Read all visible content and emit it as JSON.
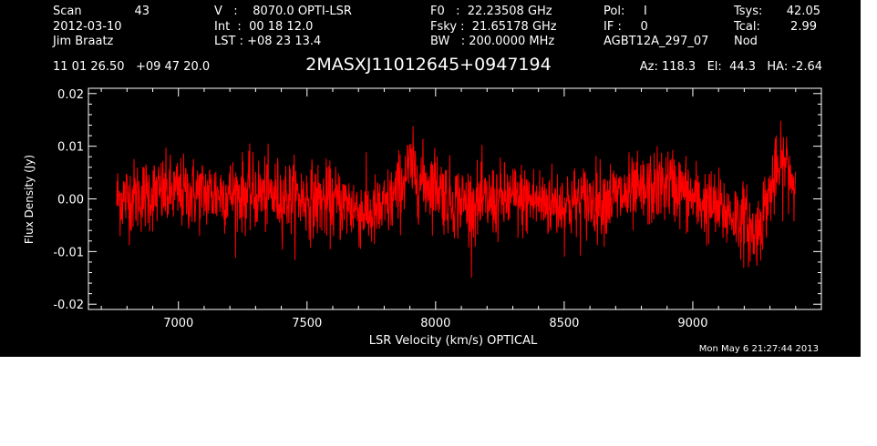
{
  "header": {
    "col1": {
      "line1_label": "Scan",
      "line1_value": "43",
      "line2": "2012-03-10",
      "line3": "Jim Braatz"
    },
    "col2": {
      "line1": "V   :    8070.0 OPTI-LSR",
      "line2": "Int  :  00 18 12.0",
      "line3": "LST : +08 23 13.4"
    },
    "col3": {
      "line1": "F0   :  22.23508 GHz",
      "line2": "Fsky :  21.65178 GHz",
      "line3": "BW   : 200.0000 MHz"
    },
    "col4": {
      "line1": "Pol:     I",
      "line2": "IF :     0",
      "line3": "AGBT12A_297_07"
    },
    "col5": {
      "line1_label": "Tsys:",
      "line1_value": "42.05",
      "line2_label": "Tcal:",
      "line2_value": "2.99",
      "line3": "Nod"
    },
    "coords": "11 01 26.50   +09 47 20.0",
    "source": "2MASXJ11012645+0947194",
    "az_el_ha": "Az: 118.3   El:  44.3   HA: -2.64"
  },
  "timestamp": "Mon May  6 21:27:44 2013",
  "colors": {
    "background": "#000000",
    "trace": "#ff0000",
    "axes": "#ffffff"
  },
  "chart_data": {
    "type": "line",
    "title": "2MASXJ11012645+0947194",
    "xlabel": "LSR Velocity (km/s) OPTICAL",
    "ylabel": "Flux Density (Jy)",
    "xlim": [
      6650,
      9500
    ],
    "ylim": [
      -0.021,
      0.021
    ],
    "xticks": [
      7000,
      7500,
      8000,
      8500,
      9000
    ],
    "xtick_labels": [
      "7000",
      "7500",
      "8000",
      "8500",
      "9000"
    ],
    "yticks": [
      -0.02,
      -0.01,
      0.0,
      0.01,
      0.02
    ],
    "ytick_labels": [
      "-0.02",
      "-0.01",
      "0.00",
      "0.01",
      "0.02"
    ],
    "grid": false,
    "series": [
      {
        "color": "#ff0000",
        "x_range": [
          6760,
          9400
        ],
        "baseline_x": [
          6760,
          6900,
          7100,
          7300,
          7500,
          7650,
          7750,
          7800,
          7860,
          7900,
          7950,
          8000,
          8050,
          8150,
          8300,
          8500,
          8650,
          8800,
          8900,
          8950,
          9000,
          9100,
          9150,
          9200,
          9240,
          9260,
          9290,
          9320,
          9360,
          9400
        ],
        "baseline_y": [
          0.0,
          0.001,
          0.001,
          0.001,
          0.0,
          -0.001,
          -0.003,
          -0.002,
          0.002,
          0.006,
          0.003,
          0.003,
          0.0,
          -0.001,
          0.0,
          -0.001,
          0.0,
          0.001,
          0.003,
          0.002,
          0.0,
          -0.002,
          -0.003,
          -0.004,
          -0.007,
          -0.005,
          0.0,
          0.004,
          0.007,
          0.002
        ],
        "noise_rms": 0.0035,
        "peak_max": 0.017,
        "peak_min": -0.018
      }
    ]
  }
}
